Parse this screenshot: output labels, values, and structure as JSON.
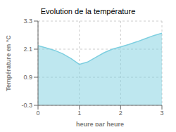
{
  "chart_data": {
    "type": "area",
    "title": "Evolution de la température",
    "xlabel": "heure par heure",
    "ylabel": "Température en °C",
    "x": [
      0,
      0.2,
      0.4,
      0.6,
      0.8,
      1.0,
      1.2,
      1.4,
      1.6,
      1.8,
      2.0,
      2.2,
      2.4,
      2.6,
      2.8,
      3.0
    ],
    "values": [
      2.25,
      2.15,
      2.05,
      1.9,
      1.7,
      1.45,
      1.55,
      1.75,
      1.95,
      2.1,
      2.2,
      2.3,
      2.42,
      2.55,
      2.68,
      2.78
    ],
    "xlim": [
      0,
      3
    ],
    "ylim": [
      -0.3,
      3.3
    ],
    "xticks": [
      0,
      1,
      2,
      3
    ],
    "yticks": [
      -0.3,
      0.9,
      2.1,
      3.3
    ],
    "color": "#7ecfe0",
    "grid": true
  }
}
